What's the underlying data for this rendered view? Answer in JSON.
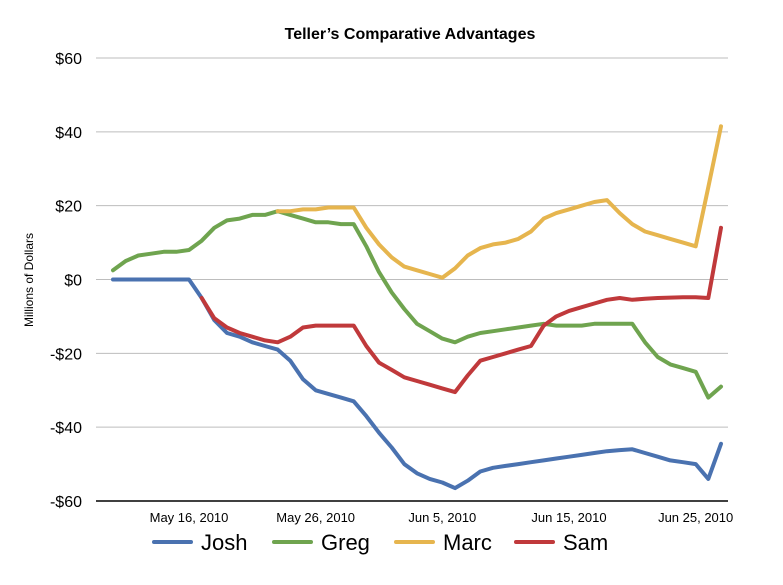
{
  "chart_data": {
    "type": "line",
    "title": "Teller’s Comparative Advantages",
    "xlabel": "",
    "ylabel": "Millions of Dollars",
    "ylim": [
      -60,
      60
    ],
    "yticks": [
      60,
      40,
      20,
      0,
      -20,
      -40,
      -60
    ],
    "ytick_labels": [
      "$60",
      "$40",
      "$20",
      "$0",
      "-$20",
      "-$40",
      "-$60"
    ],
    "x": [
      "2010-05-10",
      "2010-05-11",
      "2010-05-12",
      "2010-05-13",
      "2010-05-14",
      "2010-05-15",
      "2010-05-16",
      "2010-05-17",
      "2010-05-18",
      "2010-05-19",
      "2010-05-20",
      "2010-05-21",
      "2010-05-22",
      "2010-05-23",
      "2010-05-24",
      "2010-05-25",
      "2010-05-26",
      "2010-05-27",
      "2010-05-28",
      "2010-05-29",
      "2010-05-30",
      "2010-05-31",
      "2010-06-01",
      "2010-06-02",
      "2010-06-03",
      "2010-06-04",
      "2010-06-05",
      "2010-06-06",
      "2010-06-07",
      "2010-06-08",
      "2010-06-09",
      "2010-06-10",
      "2010-06-11",
      "2010-06-12",
      "2010-06-13",
      "2010-06-14",
      "2010-06-15",
      "2010-06-16",
      "2010-06-17",
      "2010-06-18",
      "2010-06-19",
      "2010-06-20",
      "2010-06-21",
      "2010-06-22",
      "2010-06-23",
      "2010-06-24",
      "2010-06-25",
      "2010-06-26",
      "2010-06-27"
    ],
    "xticks": [
      "2010-05-16",
      "2010-05-26",
      "2010-06-05",
      "2010-06-15",
      "2010-06-25"
    ],
    "xtick_labels": [
      "May 16, 2010",
      "May 26, 2010",
      "Jun 5, 2010",
      "Jun 15, 2010",
      "Jun 25, 2010"
    ],
    "series": [
      {
        "name": "Josh",
        "color": "#4a72b0",
        "values": [
          0,
          0,
          0,
          0,
          0,
          0,
          0,
          -5,
          -11,
          -14.5,
          -15.5,
          -17,
          -18,
          -19,
          -22,
          -27,
          -30,
          -31,
          -32,
          -33,
          -37,
          -41.5,
          -45.5,
          -50,
          -52.5,
          -54,
          -55,
          -56.5,
          -54.5,
          -52,
          -51,
          -50.5,
          -50,
          -49.5,
          -49,
          -48.5,
          -48,
          -47.5,
          -47,
          -46.5,
          -46.2,
          -46,
          -47,
          -48,
          -49,
          -49.5,
          -50,
          -54,
          -44.5
        ]
      },
      {
        "name": "Greg",
        "color": "#6fa44f",
        "values": [
          2.5,
          5,
          6.5,
          7,
          7.5,
          7.5,
          8,
          10.5,
          14,
          16,
          16.5,
          17.5,
          17.5,
          18.5,
          17.5,
          16.5,
          15.5,
          15.5,
          15,
          15,
          9,
          2,
          -3.5,
          -8,
          -12,
          -14,
          -16,
          -17,
          -15.5,
          -14.5,
          -14,
          -13.5,
          -13,
          -12.5,
          -12,
          -12.5,
          -12.5,
          -12.5,
          -12,
          -12,
          -12,
          -12,
          -17,
          -21,
          -23,
          -24,
          -25,
          -32,
          -29
        ]
      },
      {
        "name": "Marc",
        "color": "#e6b54e",
        "values": [
          null,
          null,
          null,
          null,
          null,
          null,
          null,
          null,
          null,
          null,
          null,
          null,
          null,
          18.5,
          18.5,
          19,
          19,
          19.5,
          19.5,
          19.5,
          14,
          9.5,
          6,
          3.5,
          2.5,
          1.5,
          0.5,
          3,
          6.5,
          8.5,
          9.5,
          10,
          11,
          13,
          16.5,
          18,
          19,
          20,
          21,
          21.5,
          18,
          15,
          13,
          12,
          11,
          10,
          9,
          25,
          41.5
        ]
      },
      {
        "name": "Sam",
        "color": "#c0393b",
        "values": [
          null,
          null,
          null,
          null,
          null,
          null,
          null,
          -5,
          -10.5,
          -13,
          -14.5,
          -15.5,
          -16.5,
          -17,
          -15.5,
          -13,
          -12.5,
          -12.5,
          -12.5,
          -12.5,
          -18,
          -22.5,
          -24.5,
          -26.5,
          -27.5,
          -28.5,
          -29.5,
          -30.5,
          -26,
          -22,
          -21,
          -20,
          -19,
          -18,
          -12.5,
          -10,
          -8.5,
          -7.5,
          -6.5,
          -5.5,
          -5,
          -5.5,
          -5.2,
          -5,
          -4.9,
          -4.8,
          -4.8,
          -5,
          14
        ]
      }
    ],
    "grid": {
      "horizontal": true,
      "vertical": false
    },
    "legend": {
      "position": "bottom",
      "entries": [
        "Josh",
        "Greg",
        "Marc",
        "Sam"
      ]
    },
    "colors": {
      "gridline": "#bdbdbd",
      "axis": "#000000"
    }
  }
}
